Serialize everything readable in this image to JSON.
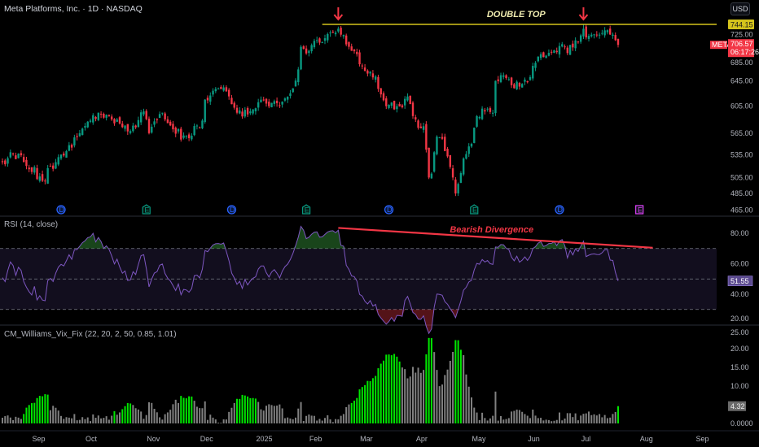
{
  "header": {
    "title": "Meta Platforms, Inc. · 1D · NASDAQ",
    "currency_button": "USD"
  },
  "colors": {
    "up": "#089981",
    "down": "#f23645",
    "rsi_line": "#7e57c2",
    "rsi_band": "#120e1e",
    "annotation_line": "#d4c31c",
    "divergence": "#f23645",
    "vix_gray": "#808080",
    "vix_green": "#00e600",
    "dividend": "#2962ff",
    "earnings": "#089981",
    "earnings_upcoming": "#e040fb"
  },
  "chart_data": {
    "type": "candlestick",
    "symbol": "META",
    "interval": "1D",
    "price_scale": "log",
    "grid": false,
    "price_ticks": [
      725,
      685,
      645,
      605,
      565,
      535,
      505,
      485,
      465
    ],
    "price_tick_labels": [
      "725.00",
      "685.00",
      "645.00",
      "605.00",
      "565.00",
      "535.00",
      "505.00",
      "485.00",
      "465.00"
    ],
    "last_price": {
      "symbol_tag": "META",
      "value": "706.57",
      "countdown": "06:17:26"
    },
    "level_tag": "744.15",
    "time_labels": [
      {
        "label": "Sep",
        "month": "2024-09"
      },
      {
        "label": "Oct",
        "month": "2024-10"
      },
      {
        "label": "Nov",
        "month": "2024-11"
      },
      {
        "label": "Dec",
        "month": "2024-12"
      },
      {
        "label": "2025",
        "month": "2025-01"
      },
      {
        "label": "Feb",
        "month": "2025-02"
      },
      {
        "label": "Mar",
        "month": "2025-03"
      },
      {
        "label": "Apr",
        "month": "2025-04"
      },
      {
        "label": "May",
        "month": "2025-05"
      },
      {
        "label": "Jun",
        "month": "2025-06"
      },
      {
        "label": "Jul",
        "month": "2025-07"
      },
      {
        "label": "Aug",
        "month": "2025-08"
      },
      {
        "label": "Sep",
        "month": "2025-09"
      }
    ],
    "price_path": [
      [
        "2024-08-14",
        525
      ],
      [
        "2024-08-20",
        536
      ],
      [
        "2024-08-27",
        520
      ],
      [
        "2024-09-06",
        500
      ],
      [
        "2024-09-12",
        525
      ],
      [
        "2024-09-18",
        540
      ],
      [
        "2024-09-25",
        565
      ],
      [
        "2024-10-04",
        595
      ],
      [
        "2024-10-11",
        585
      ],
      [
        "2024-10-22",
        568
      ],
      [
        "2024-10-29",
        597
      ],
      [
        "2024-10-31",
        565
      ],
      [
        "2024-11-07",
        595
      ],
      [
        "2024-11-18",
        556
      ],
      [
        "2024-11-27",
        573
      ],
      [
        "2024-12-02",
        615
      ],
      [
        "2024-12-06",
        632
      ],
      [
        "2024-12-12",
        628
      ],
      [
        "2024-12-18",
        595
      ],
      [
        "2024-12-26",
        597
      ],
      [
        "2025-01-03",
        615
      ],
      [
        "2025-01-08",
        610
      ],
      [
        "2025-01-15",
        612
      ],
      [
        "2025-01-21",
        625
      ],
      [
        "2025-01-24",
        664
      ],
      [
        "2025-01-27",
        703
      ],
      [
        "2025-01-30",
        696
      ],
      [
        "2025-02-04",
        715
      ],
      [
        "2025-02-11",
        729
      ],
      [
        "2025-02-14",
        736
      ],
      [
        "2025-02-18",
        725
      ],
      [
        "2025-02-24",
        696
      ],
      [
        "2025-02-28",
        670
      ],
      [
        "2025-03-05",
        660
      ],
      [
        "2025-03-10",
        632
      ],
      [
        "2025-03-13",
        605
      ],
      [
        "2025-03-19",
        605
      ],
      [
        "2025-03-25",
        620
      ],
      [
        "2025-03-28",
        585
      ],
      [
        "2025-04-02",
        575
      ],
      [
        "2025-04-04",
        505
      ],
      [
        "2025-04-07",
        510
      ],
      [
        "2025-04-09",
        560
      ],
      [
        "2025-04-14",
        540
      ],
      [
        "2025-04-17",
        505
      ],
      [
        "2025-04-21",
        485
      ],
      [
        "2025-04-24",
        530
      ],
      [
        "2025-04-29",
        550
      ],
      [
        "2025-05-01",
        590
      ],
      [
        "2025-05-06",
        597
      ],
      [
        "2025-05-09",
        595
      ],
      [
        "2025-05-12",
        645
      ],
      [
        "2025-05-15",
        654
      ],
      [
        "2025-05-20",
        638
      ],
      [
        "2025-05-27",
        640
      ],
      [
        "2025-06-02",
        670
      ],
      [
        "2025-06-05",
        690
      ],
      [
        "2025-06-12",
        697
      ],
      [
        "2025-06-18",
        703
      ],
      [
        "2025-06-20",
        692
      ],
      [
        "2025-06-24",
        702
      ],
      [
        "2025-06-26",
        712
      ],
      [
        "2025-06-30",
        736
      ],
      [
        "2025-07-01",
        720
      ],
      [
        "2025-07-03",
        725
      ],
      [
        "2025-07-08",
        725
      ],
      [
        "2025-07-11",
        733
      ],
      [
        "2025-07-16",
        725
      ],
      [
        "2025-07-18",
        706.57
      ]
    ],
    "peak_highs": [
      [
        "2025-02-14",
        740
      ],
      [
        "2025-06-30",
        744.15
      ]
    ],
    "events": [
      {
        "type": "D",
        "date": "2024-09-16"
      },
      {
        "type": "E",
        "date": "2024-10-30"
      },
      {
        "type": "D",
        "date": "2024-12-16"
      },
      {
        "type": "E",
        "date": "2025-01-29"
      },
      {
        "type": "D",
        "date": "2025-03-14"
      },
      {
        "type": "E",
        "date": "2025-04-30"
      },
      {
        "type": "D",
        "date": "2025-06-16"
      },
      {
        "type": "E",
        "date": "2025-07-30",
        "upcoming": true
      }
    ],
    "annotations": {
      "double_top": {
        "label": "DOUBLE TOP",
        "level": 744.15,
        "from": "2025-02-06",
        "arrows": [
          "2025-02-14",
          "2025-06-30"
        ]
      },
      "divergence": {
        "label": "Bearish Divergence",
        "from": [
          "2025-02-14",
          83.5
        ],
        "to": [
          "2025-08-06",
          70.5
        ]
      }
    },
    "rsi": {
      "title": "RSI (14, close)",
      "length": 14,
      "bands": {
        "upper": 70,
        "middle": 50,
        "lower": 30
      },
      "ticks": [
        80,
        60,
        40,
        20
      ],
      "tick_labels": [
        "80.00",
        "60.00",
        "40.00",
        "20.00"
      ],
      "last_value": "51.55"
    },
    "vix_fix": {
      "title": "CM_Williams_Vix_Fix (22, 20, 2, 50, 0.85, 1.01)",
      "params": {
        "pd": 22,
        "bbl": 20,
        "mult": 2,
        "lb": 50,
        "ph": 0.85
      },
      "ticks": [
        25,
        20,
        15,
        10,
        0
      ],
      "tick_labels": [
        "25.00",
        "20.00",
        "15.00",
        "10.00",
        "0.0000"
      ],
      "last_value": "4.32"
    }
  }
}
